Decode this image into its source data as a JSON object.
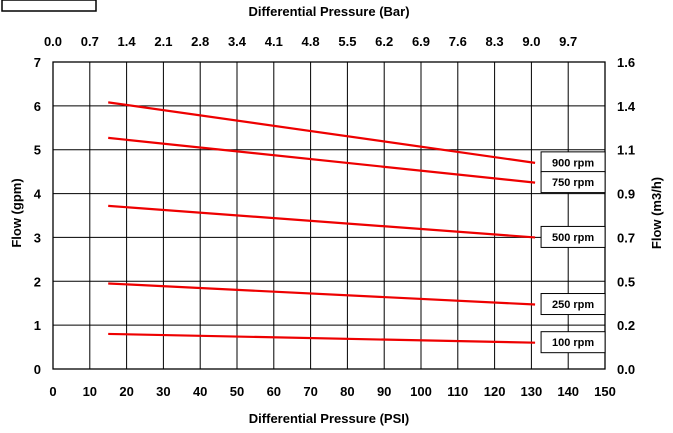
{
  "chart_data": {
    "type": "line",
    "title": "",
    "xlabel": "Differential Pressure (PSI)",
    "ylabel": "Flow (gpm)",
    "x2label": "Differential Pressure (Bar)",
    "y2label": "Flow (m3/h)",
    "xlim": [
      0,
      150
    ],
    "ylim": [
      0,
      7
    ],
    "grid": true,
    "x_ticks": [
      "0",
      "10",
      "20",
      "30",
      "40",
      "50",
      "60",
      "70",
      "80",
      "90",
      "100",
      "110",
      "120",
      "130",
      "140",
      "150"
    ],
    "y_ticks": [
      "0",
      "1",
      "2",
      "3",
      "4",
      "5",
      "6",
      "7"
    ],
    "x2_ticks": [
      "0.0",
      "0.7",
      "1.4",
      "2.1",
      "2.8",
      "3.4",
      "4.1",
      "4.8",
      "5.5",
      "6.2",
      "6.9",
      "7.6",
      "8.3",
      "9.0",
      "9.7"
    ],
    "y2_ticks": [
      "0.0",
      "0.2",
      "0.5",
      "0.7",
      "0.9",
      "1.1",
      "1.4",
      "1.6"
    ],
    "series": [
      {
        "name": "900 rpm",
        "x": [
          15,
          131
        ],
        "y": [
          6.08,
          4.7
        ]
      },
      {
        "name": "750 rpm",
        "x": [
          15,
          131
        ],
        "y": [
          5.27,
          4.25
        ]
      },
      {
        "name": "500 rpm",
        "x": [
          15,
          131
        ],
        "y": [
          3.72,
          3.0
        ]
      },
      {
        "name": "250 rpm",
        "x": [
          15,
          131
        ],
        "y": [
          1.95,
          1.47
        ]
      },
      {
        "name": "100 rpm",
        "x": [
          15,
          131
        ],
        "y": [
          0.8,
          0.6
        ]
      }
    ],
    "series_color": "#ee0000"
  }
}
